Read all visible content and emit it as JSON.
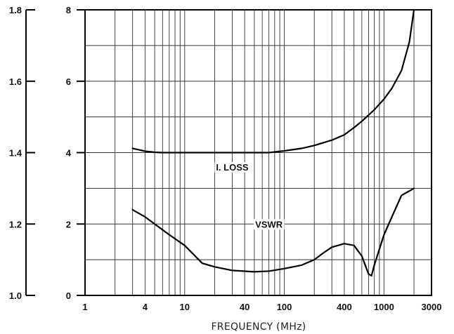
{
  "chart_data": {
    "type": "line",
    "title": "",
    "xlabel": "FREQUENCY (MHz)",
    "x_scale": "log",
    "xlim": [
      1,
      3000
    ],
    "x_ticks": [
      1,
      4,
      10,
      40,
      100,
      400,
      1000,
      3000
    ],
    "x_tick_labels": [
      "1",
      "4",
      "10",
      "40",
      "100",
      "400",
      "1000",
      "3000"
    ],
    "y_left": {
      "label": "",
      "ylim": [
        1.0,
        1.8
      ],
      "ticks": [
        1.0,
        1.2,
        1.4,
        1.6,
        1.8
      ],
      "tick_labels": [
        "1.0",
        "1.2",
        "1.4",
        "1.6",
        "1.8"
      ]
    },
    "y_right": {
      "label": "",
      "ylim": [
        0,
        8
      ],
      "ticks": [
        0,
        2,
        4,
        6,
        8
      ],
      "tick_labels": [
        "0",
        "2",
        "4",
        "6",
        "8"
      ]
    },
    "grid": true,
    "series": [
      {
        "name": "I. LOSS",
        "axis": "right",
        "points": [
          [
            3,
            4.12
          ],
          [
            4,
            4.04
          ],
          [
            5,
            4.01
          ],
          [
            6,
            4.0
          ],
          [
            10,
            4.0
          ],
          [
            20,
            4.0
          ],
          [
            40,
            4.0
          ],
          [
            70,
            4.0
          ],
          [
            100,
            4.05
          ],
          [
            150,
            4.12
          ],
          [
            200,
            4.2
          ],
          [
            300,
            4.35
          ],
          [
            400,
            4.5
          ],
          [
            500,
            4.7
          ],
          [
            600,
            4.88
          ],
          [
            700,
            5.05
          ],
          [
            800,
            5.2
          ],
          [
            1000,
            5.5
          ],
          [
            1200,
            5.8
          ],
          [
            1500,
            6.3
          ],
          [
            1800,
            7.1
          ],
          [
            2000,
            8.0
          ]
        ]
      },
      {
        "name": "VSWR",
        "axis": "left",
        "points": [
          [
            3,
            1.24
          ],
          [
            4,
            1.22
          ],
          [
            5,
            1.2
          ],
          [
            7,
            1.17
          ],
          [
            10,
            1.14
          ],
          [
            15,
            1.09
          ],
          [
            20,
            1.08
          ],
          [
            30,
            1.07
          ],
          [
            50,
            1.066
          ],
          [
            70,
            1.068
          ],
          [
            100,
            1.075
          ],
          [
            150,
            1.085
          ],
          [
            200,
            1.1
          ],
          [
            250,
            1.12
          ],
          [
            300,
            1.135
          ],
          [
            400,
            1.145
          ],
          [
            500,
            1.14
          ],
          [
            600,
            1.11
          ],
          [
            700,
            1.06
          ],
          [
            750,
            1.055
          ],
          [
            800,
            1.085
          ],
          [
            1000,
            1.17
          ],
          [
            1200,
            1.22
          ],
          [
            1500,
            1.28
          ],
          [
            2000,
            1.3
          ]
        ]
      }
    ],
    "annotations": [
      {
        "text": "I. LOSS",
        "x": 30,
        "y_right": 3.5
      },
      {
        "text": "VSWR",
        "x": 70,
        "y_left": 1.19
      }
    ]
  }
}
